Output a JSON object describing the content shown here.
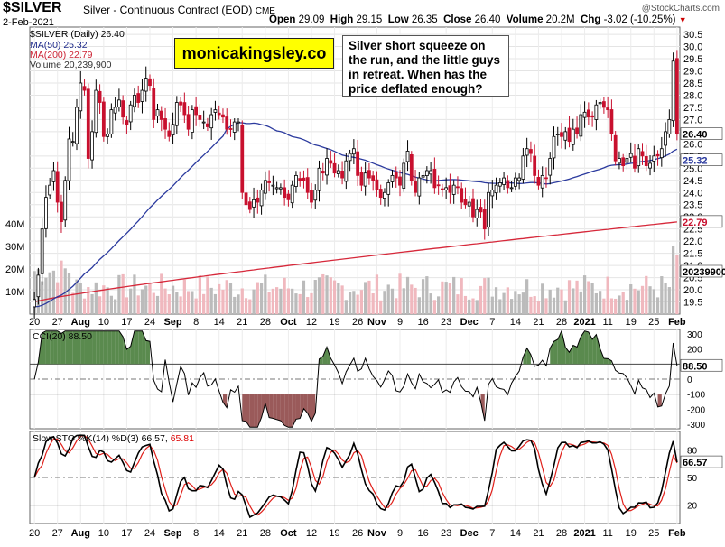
{
  "header": {
    "symbol": "$SILVER",
    "description": "Silver - Continuous Contract (EOD)",
    "exchange": "CME",
    "date": "2-Feb-2021",
    "open_label": "Open",
    "open": "29.09",
    "high_label": "High",
    "high": "29.15",
    "low_label": "Low",
    "low": "26.35",
    "close_label": "Close",
    "close": "26.40",
    "volume_label": "Volume",
    "volume": "20.2M",
    "chg_label": "Chg",
    "chg": "-3.02 (-10.25%)",
    "credit": "@StockCharts.com"
  },
  "annotations": {
    "logo": "monicakingsley.co",
    "note": "Silver short squeeze on the run, and the little guys in retreat. When has the price deflated enough?"
  },
  "chart_data": [
    {
      "type": "candlestick",
      "legend": [
        "$SILVER (Daily) 26.40",
        "MA(50) 25.32",
        "MA(200) 22.79",
        "Volume 20,239,900"
      ],
      "y_ticks": [
        19.5,
        20.0,
        20.5,
        21.0,
        21.5,
        22.0,
        22.5,
        23.0,
        23.5,
        24.0,
        24.5,
        25.0,
        25.5,
        26.0,
        26.5,
        27.0,
        27.5,
        28.0,
        28.5,
        29.0,
        29.5,
        30.0,
        30.5
      ],
      "ylim": [
        19.0,
        30.8
      ],
      "volume_ticks": [
        "10M",
        "20M",
        "30M",
        "40M"
      ],
      "x_tick_labels": [
        "20",
        "27",
        "Aug",
        "10",
        "17",
        "24",
        "Sep",
        "8",
        "14",
        "21",
        "28",
        "Oct",
        "12",
        "19",
        "26",
        "Nov",
        "9",
        "16",
        "23",
        "Dec",
        "7",
        "14",
        "21",
        "28",
        "2021",
        "11",
        "19",
        "25",
        "Feb"
      ],
      "last_price_label": "26.40",
      "ma50_label": "25.32",
      "ma200_label": "22.79",
      "volume_label": "20239900",
      "close_series": [
        19.6,
        20.6,
        22.5,
        23.8,
        24.3,
        24.9,
        23.6,
        22.8,
        24.5,
        26.2,
        26.1,
        27.5,
        28.5,
        28.2,
        25.4,
        26.5,
        28.2,
        27.7,
        26.3,
        26.4,
        27.4,
        27.5,
        27.8,
        27.1,
        26.8,
        27.6,
        28.0,
        27.7,
        28.2,
        28.7,
        28.4,
        27.0,
        27.4,
        27.0,
        26.6,
        26.3,
        26.8,
        27.7,
        27.6,
        27.2,
        26.6,
        27.4,
        27.2,
        27.0,
        26.9,
        26.7,
        27.2,
        27.4,
        27.2,
        27.1,
        26.6,
        26.6,
        26.9,
        26.9,
        24.0,
        23.5,
        23.3,
        23.7,
        23.6,
        24.1,
        24.5,
        24.4,
        24.3,
        24.2,
        24.2,
        23.8,
        23.7,
        24.3,
        24.7,
        24.5,
        24.5,
        24.0,
        23.6,
        24.1,
        25.0,
        24.8,
        25.4,
        25.2,
        24.8,
        24.9,
        24.6,
        25.3,
        25.6,
        25.8,
        24.7,
        24.3,
        24.8,
        24.6,
        24.5,
        24.1,
        23.8,
        24.0,
        24.4,
        24.7,
        24.6,
        24.3,
        25.2,
        25.7,
        24.5,
        24.0,
        24.6,
        24.7,
        24.9,
        24.9,
        24.2,
        24.3,
        24.1,
        24.2,
        24.0,
        24.3,
        24.2,
        23.6,
        23.5,
        23.6,
        23.0,
        23.3,
        23.2,
        22.5,
        24.0,
        24.1,
        24.3,
        24.4,
        24.6,
        24.2,
        24.2,
        24.6,
        24.6,
        25.5,
        25.8,
        25.6,
        24.7,
        24.3,
        24.7,
        24.6,
        25.4,
        26.3,
        26.4,
        26.3,
        26.5,
        26.1,
        26.6,
        26.4,
        27.2,
        27.3,
        27.1,
        27.1,
        27.6,
        27.7,
        27.5,
        27.4,
        26.4,
        25.3,
        25.4,
        25.1,
        25.4,
        25.6,
        25.0,
        25.8,
        25.5,
        25.1,
        25.2,
        25.5,
        25.5,
        25.8,
        26.5,
        27.0,
        29.4,
        26.4
      ],
      "ma200_start_end": [
        19.5,
        22.79
      ]
    },
    {
      "type": "line",
      "legend": "CCI(20) 88.50",
      "y_ticks": [
        300,
        200,
        100,
        0,
        -100,
        -200,
        -300
      ],
      "ylim": [
        -330,
        330
      ],
      "last_label": "88.50"
    },
    {
      "type": "line",
      "legend": "Slow STO %K(14) %D(3) 66.57, 65.81",
      "legend_k": "Slow STO %K(14) %D(3) 66.57,",
      "legend_d": "65.81",
      "y_ticks": [
        80,
        50,
        20
      ],
      "ylim": [
        0,
        100
      ],
      "last_label": "66.57"
    }
  ]
}
